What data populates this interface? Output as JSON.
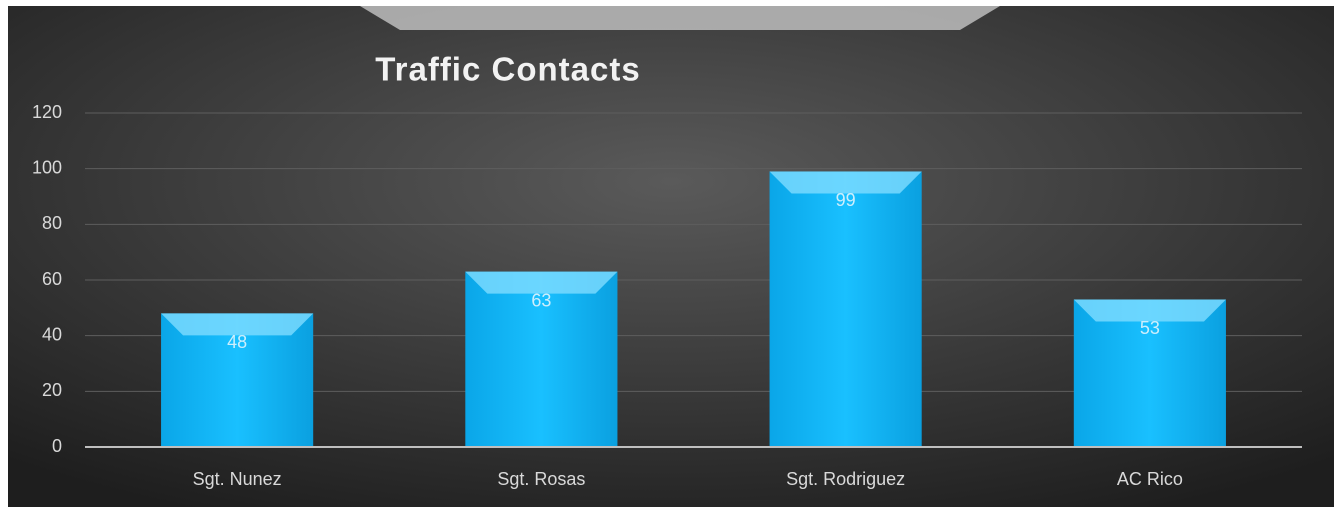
{
  "chart_data": {
    "type": "bar",
    "title": "Traffic Contacts",
    "categories": [
      "Sgt. Nunez",
      "Sgt. Rosas",
      "Sgt. Rodriguez",
      "AC Rico"
    ],
    "values": [
      48,
      63,
      99,
      53
    ],
    "color": "#12b8f5",
    "ylim": [
      0,
      120
    ],
    "yticks": [
      0,
      20,
      40,
      60,
      80,
      100,
      120
    ],
    "grid": true
  }
}
